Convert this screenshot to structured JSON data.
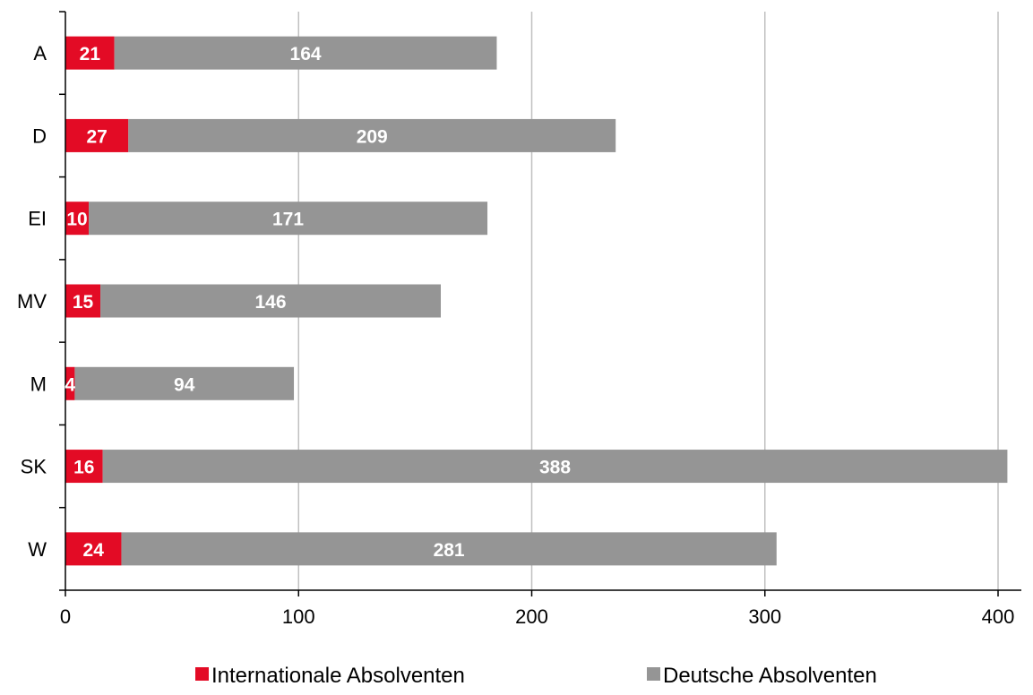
{
  "chart_data": {
    "type": "bar",
    "orientation": "horizontal",
    "stacked": true,
    "categories": [
      "A",
      "D",
      "EI",
      "MV",
      "M",
      "SK",
      "W"
    ],
    "series": [
      {
        "name": "Internationale Absolventen",
        "color": "#e30b25",
        "values": [
          21,
          27,
          10,
          15,
          4,
          16,
          24
        ]
      },
      {
        "name": "Deutsche Absolventen",
        "color": "#959595",
        "values": [
          164,
          209,
          171,
          146,
          94,
          388,
          281
        ]
      }
    ],
    "xlim": [
      0,
      400
    ],
    "xticks": [
      0,
      100,
      200,
      300,
      400
    ],
    "grid": "vertical",
    "legend_position": "bottom",
    "data_labels": true
  }
}
